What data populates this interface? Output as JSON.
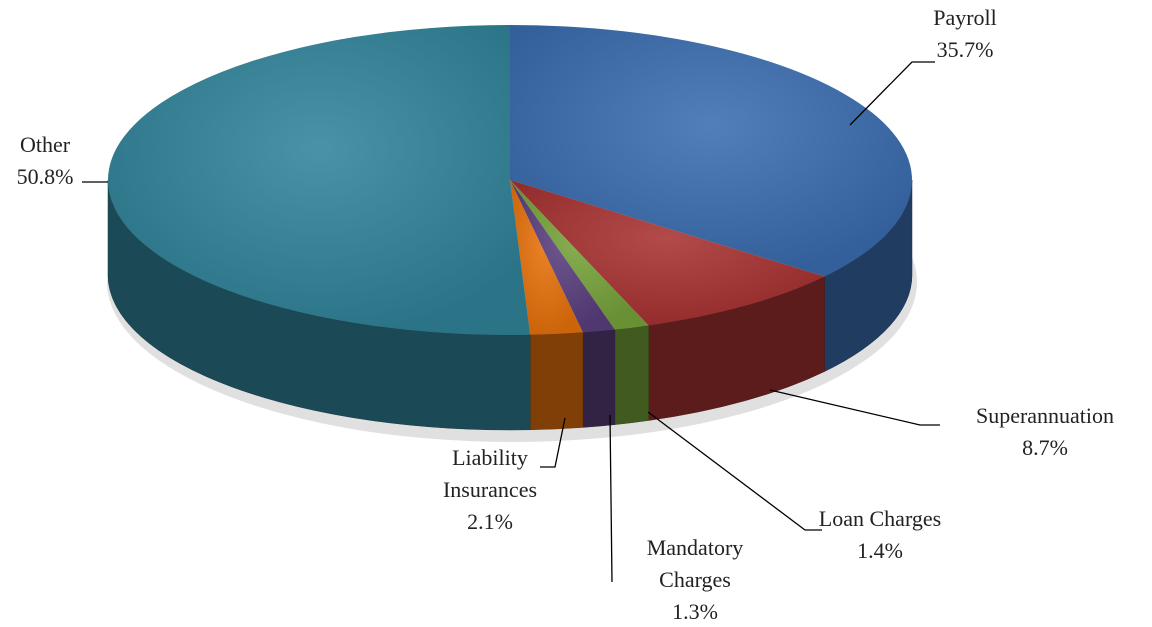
{
  "chart_data": {
    "type": "pie",
    "categories": [
      "Payroll",
      "Superannuation",
      "Loan Charges",
      "Mandatory Charges",
      "Liability Insurances",
      "Other"
    ],
    "values": [
      35.7,
      8.7,
      1.4,
      1.3,
      2.1,
      50.8
    ],
    "value_labels": [
      "35.7%",
      "8.7%",
      "1.4%",
      "1.3%",
      "2.1%",
      "50.8%"
    ],
    "colors": [
      "#3a6db0",
      "#a83232",
      "#77a33a",
      "#5a3f7e",
      "#e8720c",
      "#31849b"
    ]
  }
}
